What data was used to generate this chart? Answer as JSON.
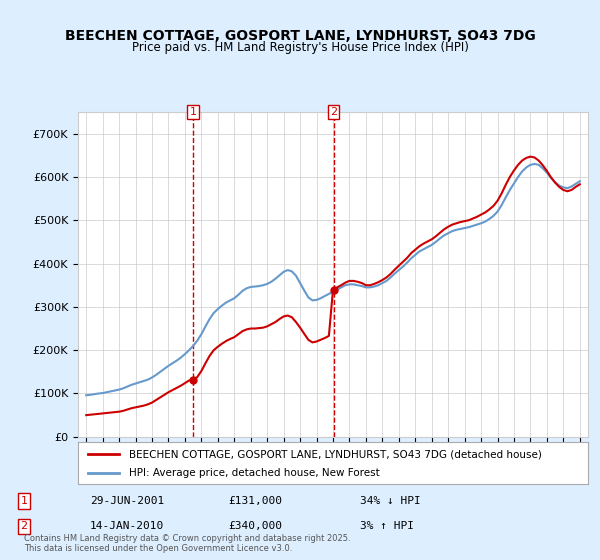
{
  "title": "BEECHEN COTTAGE, GOSPORT LANE, LYNDHURST, SO43 7DG",
  "subtitle": "Price paid vs. HM Land Registry's House Price Index (HPI)",
  "legend_label_red": "BEECHEN COTTAGE, GOSPORT LANE, LYNDHURST, SO43 7DG (detached house)",
  "legend_label_blue": "HPI: Average price, detached house, New Forest",
  "footer": "Contains HM Land Registry data © Crown copyright and database right 2025.\nThis data is licensed under the Open Government Licence v3.0.",
  "marker1_date": "29-JUN-2001",
  "marker1_price": "£131,000",
  "marker1_hpi": "34% ↓ HPI",
  "marker1_x": 2001.5,
  "marker2_date": "14-JAN-2010",
  "marker2_price": "£340,000",
  "marker2_hpi": "3% ↑ HPI",
  "marker2_x": 2010.04,
  "red_color": "#cc0000",
  "blue_color": "#6699cc",
  "marker_color": "#cc0000",
  "background_color": "#ddeeff",
  "plot_bg_color": "#ffffff",
  "ylim": [
    0,
    750000
  ],
  "xlim": [
    1994.5,
    2025.5
  ],
  "hpi_years": [
    1995,
    1995.25,
    1995.5,
    1995.75,
    1996,
    1996.25,
    1996.5,
    1996.75,
    1997,
    1997.25,
    1997.5,
    1997.75,
    1998,
    1998.25,
    1998.5,
    1998.75,
    1999,
    1999.25,
    1999.5,
    1999.75,
    2000,
    2000.25,
    2000.5,
    2000.75,
    2001,
    2001.25,
    2001.5,
    2001.75,
    2002,
    2002.25,
    2002.5,
    2002.75,
    2003,
    2003.25,
    2003.5,
    2003.75,
    2004,
    2004.25,
    2004.5,
    2004.75,
    2005,
    2005.25,
    2005.5,
    2005.75,
    2006,
    2006.25,
    2006.5,
    2006.75,
    2007,
    2007.25,
    2007.5,
    2007.75,
    2008,
    2008.25,
    2008.5,
    2008.75,
    2009,
    2009.25,
    2009.5,
    2009.75,
    2010,
    2010.25,
    2010.5,
    2010.75,
    2011,
    2011.25,
    2011.5,
    2011.75,
    2012,
    2012.25,
    2012.5,
    2012.75,
    2013,
    2013.25,
    2013.5,
    2013.75,
    2014,
    2014.25,
    2014.5,
    2014.75,
    2015,
    2015.25,
    2015.5,
    2015.75,
    2016,
    2016.25,
    2016.5,
    2016.75,
    2017,
    2017.25,
    2017.5,
    2017.75,
    2018,
    2018.25,
    2018.5,
    2018.75,
    2019,
    2019.25,
    2019.5,
    2019.75,
    2020,
    2020.25,
    2020.5,
    2020.75,
    2021,
    2021.25,
    2021.5,
    2021.75,
    2022,
    2022.25,
    2022.5,
    2022.75,
    2023,
    2023.25,
    2023.5,
    2023.75,
    2024,
    2024.25,
    2024.5,
    2024.75,
    2025
  ],
  "hpi_values": [
    96000,
    97000,
    98500,
    100000,
    101000,
    103000,
    105000,
    107000,
    109000,
    112000,
    116000,
    120000,
    123000,
    126000,
    129000,
    132000,
    137000,
    143000,
    150000,
    157000,
    164000,
    170000,
    176000,
    183000,
    191000,
    200000,
    210000,
    222000,
    237000,
    255000,
    272000,
    286000,
    295000,
    303000,
    310000,
    315000,
    320000,
    328000,
    337000,
    343000,
    346000,
    347000,
    348000,
    350000,
    353000,
    358000,
    365000,
    373000,
    381000,
    385000,
    382000,
    372000,
    355000,
    338000,
    322000,
    315000,
    316000,
    320000,
    325000,
    330000,
    335000,
    340000,
    345000,
    350000,
    352000,
    352000,
    350000,
    348000,
    345000,
    345000,
    347000,
    350000,
    355000,
    360000,
    368000,
    377000,
    385000,
    393000,
    402000,
    412000,
    420000,
    428000,
    433000,
    438000,
    443000,
    450000,
    458000,
    465000,
    470000,
    475000,
    478000,
    480000,
    482000,
    484000,
    487000,
    490000,
    493000,
    497000,
    503000,
    510000,
    520000,
    535000,
    553000,
    570000,
    585000,
    600000,
    613000,
    622000,
    628000,
    630000,
    628000,
    620000,
    610000,
    598000,
    588000,
    580000,
    576000,
    574000,
    578000,
    584000,
    590000
  ],
  "red_years": [
    1995,
    1995.25,
    1995.5,
    1995.75,
    1996,
    1996.25,
    1996.5,
    1996.75,
    1997,
    1997.25,
    1997.5,
    1997.75,
    1998,
    1998.25,
    1998.5,
    1998.75,
    1999,
    1999.25,
    1999.5,
    1999.75,
    2000,
    2000.25,
    2000.5,
    2000.75,
    2001,
    2001.25,
    2001.5,
    2001.75,
    2002,
    2002.25,
    2002.5,
    2002.75,
    2003,
    2003.25,
    2003.5,
    2003.75,
    2004,
    2004.25,
    2004.5,
    2004.75,
    2005,
    2005.25,
    2005.5,
    2005.75,
    2006,
    2006.25,
    2006.5,
    2006.75,
    2007,
    2007.25,
    2007.5,
    2007.75,
    2008,
    2008.25,
    2008.5,
    2008.75,
    2009,
    2009.25,
    2009.5,
    2009.75,
    2010,
    2010.25,
    2010.5,
    2010.75,
    2011,
    2011.25,
    2011.5,
    2011.75,
    2012,
    2012.25,
    2012.5,
    2012.75,
    2013,
    2013.25,
    2013.5,
    2013.75,
    2014,
    2014.25,
    2014.5,
    2014.75,
    2015,
    2015.25,
    2015.5,
    2015.75,
    2016,
    2016.25,
    2016.5,
    2016.75,
    2017,
    2017.25,
    2017.5,
    2017.75,
    2018,
    2018.25,
    2018.5,
    2018.75,
    2019,
    2019.25,
    2019.5,
    2019.75,
    2020,
    2020.25,
    2020.5,
    2020.75,
    2021,
    2021.25,
    2021.5,
    2021.75,
    2022,
    2022.25,
    2022.5,
    2022.75,
    2023,
    2023.25,
    2023.5,
    2023.75,
    2024,
    2024.25,
    2024.5,
    2024.75,
    2025
  ],
  "red_values": [
    50000,
    51000,
    52000,
    53000,
    54000,
    55000,
    56000,
    57000,
    58000,
    60000,
    63000,
    66000,
    68000,
    70000,
    72000,
    75000,
    79000,
    85000,
    91000,
    97000,
    103000,
    108000,
    113000,
    118000,
    124000,
    130000,
    131000,
    138000,
    152000,
    170000,
    187000,
    200000,
    208000,
    215000,
    221000,
    226000,
    230000,
    237000,
    244000,
    248000,
    250000,
    250000,
    251000,
    252000,
    255000,
    260000,
    265000,
    272000,
    278000,
    280000,
    276000,
    265000,
    252000,
    238000,
    224000,
    218000,
    220000,
    224000,
    228000,
    233000,
    340000,
    345000,
    350000,
    356000,
    360000,
    360000,
    358000,
    355000,
    350000,
    350000,
    353000,
    357000,
    362000,
    368000,
    376000,
    386000,
    395000,
    404000,
    413000,
    424000,
    432000,
    440000,
    446000,
    451000,
    456000,
    463000,
    471000,
    479000,
    485000,
    490000,
    493000,
    496000,
    498000,
    500000,
    504000,
    508000,
    513000,
    518000,
    525000,
    533000,
    545000,
    562000,
    582000,
    600000,
    615000,
    628000,
    638000,
    644000,
    647000,
    645000,
    638000,
    627000,
    614000,
    599000,
    587000,
    577000,
    570000,
    567000,
    570000,
    577000,
    583000
  ]
}
